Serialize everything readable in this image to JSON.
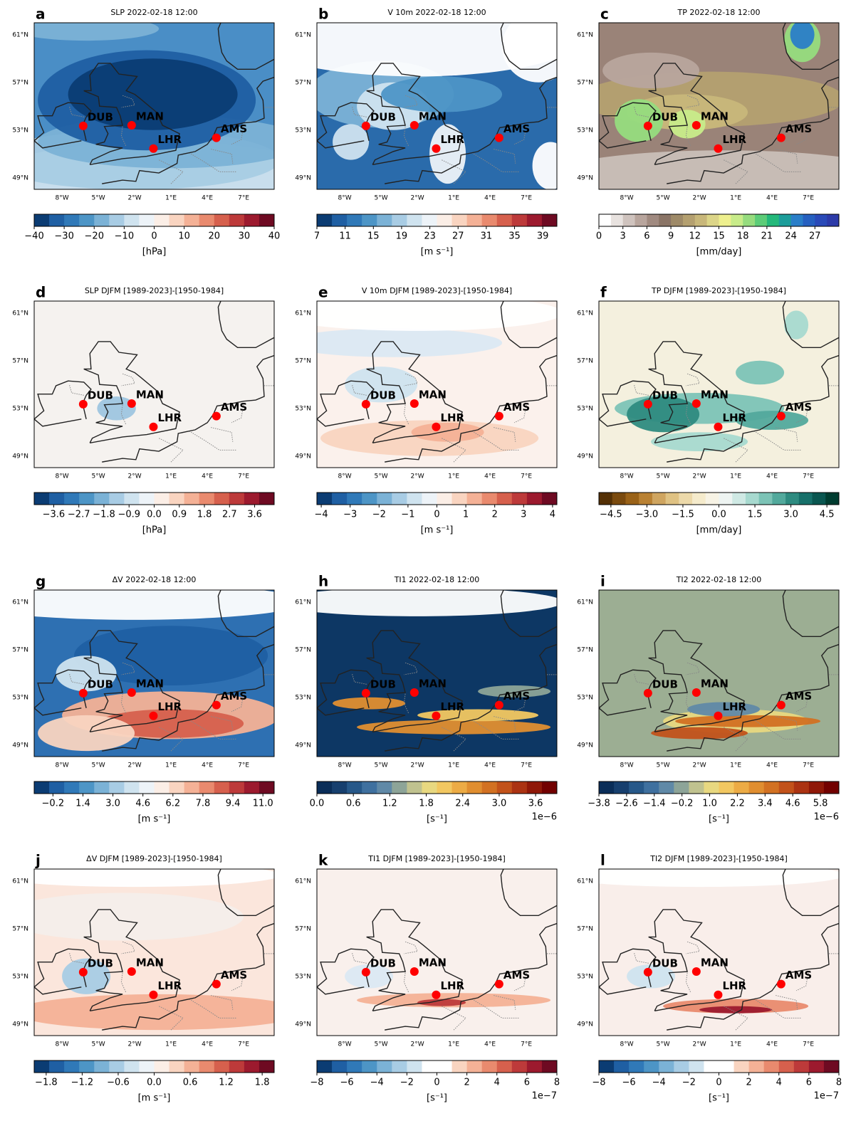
{
  "lat_labels": [
    "61°N",
    "57°N",
    "53°N",
    "49°N"
  ],
  "lon_labels": [
    "8°W",
    "5°W",
    "2°W",
    "1°E",
    "4°E",
    "7°E"
  ],
  "stations": [
    "DUB",
    "MAN",
    "LHR",
    "AMS"
  ],
  "panels": [
    {
      "letter": "a",
      "title": "SLP 2022-02-18 12:00",
      "colorbar": {
        "label": "[hPa]",
        "range": [
          -40,
          40
        ],
        "ticks": [
          {
            "value": -40,
            "label": "−40"
          },
          {
            "value": -30,
            "label": "−30"
          },
          {
            "value": -20,
            "label": "−20"
          },
          {
            "value": -10,
            "label": "−10"
          },
          0,
          10,
          20,
          30,
          40
        ],
        "colors": [
          "#0b3c73",
          "#1f5fa3",
          "#3079b8",
          "#4d95c6",
          "#7bb2d6",
          "#a8cce4",
          "#cfe3ef",
          "#edf3f8",
          "#fbeee6",
          "#f9d4c0",
          "#f4b196",
          "#e98a6e",
          "#d6604d",
          "#bd3a3a",
          "#9c1a2e",
          "#6e0a22"
        ]
      }
    },
    {
      "letter": "b",
      "title": "V 10m 2022-02-18 12:00",
      "colorbar": {
        "label": "[m s⁻¹]",
        "range": [
          7,
          41
        ],
        "ticks": [
          7,
          11,
          15,
          19,
          23,
          27,
          31,
          35,
          39
        ],
        "colors": [
          "#0b3c73",
          "#1f5fa3",
          "#3079b8",
          "#4d95c6",
          "#7bb2d6",
          "#a8cce4",
          "#cfe3ef",
          "#edf3f8",
          "#fbeee6",
          "#f9d4c0",
          "#f4b196",
          "#e98a6e",
          "#d6604d",
          "#bd3a3a",
          "#9c1a2e",
          "#6e0a22"
        ]
      }
    },
    {
      "letter": "c",
      "title": "TP 2022-02-18 12:00",
      "colorbar": {
        "label": "[mm/day]",
        "range": [
          0,
          30
        ],
        "ticks": [
          0,
          3,
          6,
          9,
          12,
          15,
          18,
          21,
          24,
          27
        ],
        "colors": [
          "#ffffff",
          "#e8e2df",
          "#cfc3be",
          "#b8a59d",
          "#a08a80",
          "#8a7466",
          "#9e8a68",
          "#b4a070",
          "#c8b77a",
          "#dcd588",
          "#eef08e",
          "#c8ec8a",
          "#96dc7e",
          "#5ccc78",
          "#24b87a",
          "#1c9d9a",
          "#2a7ec8",
          "#2660c0",
          "#2a4ab8",
          "#2c3aa8"
        ]
      }
    },
    {
      "letter": "d",
      "title": "SLP DJFM [1989-2023]-[1950-1984]",
      "colorbar": {
        "label": "[hPa]",
        "range": [
          -4.3,
          4.3
        ],
        "ticks": [
          {
            "value": -3.6,
            "label": "−3.6"
          },
          {
            "value": -2.7,
            "label": "−2.7"
          },
          {
            "value": -1.8,
            "label": "−1.8"
          },
          {
            "value": -0.9,
            "label": "−0.9"
          },
          {
            "value": 0,
            "label": "0.0"
          },
          0.9,
          1.8,
          2.7,
          3.6
        ],
        "colors": [
          "#0b3c73",
          "#1f5fa3",
          "#3079b8",
          "#4d95c6",
          "#7bb2d6",
          "#a8cce4",
          "#cfe3ef",
          "#edf3f8",
          "#fbeee6",
          "#f9d4c0",
          "#f4b196",
          "#e98a6e",
          "#d6604d",
          "#bd3a3a",
          "#9c1a2e",
          "#6e0a22"
        ]
      }
    },
    {
      "letter": "e",
      "title": "V 10m DJFM [1989-2023]-[1950-1984]",
      "colorbar": {
        "label": "[m s⁻¹]",
        "range": [
          -4.15,
          4.15
        ],
        "ticks": [
          {
            "value": -4,
            "label": "−4"
          },
          {
            "value": -3,
            "label": "−3"
          },
          {
            "value": -2,
            "label": "−2"
          },
          {
            "value": -1,
            "label": "−1"
          },
          0,
          1,
          2,
          3,
          4
        ],
        "colors": [
          "#0b3c73",
          "#1f5fa3",
          "#3079b8",
          "#4d95c6",
          "#7bb2d6",
          "#a8cce4",
          "#cfe3ef",
          "#edf3f8",
          "#fbeee6",
          "#f9d4c0",
          "#f4b196",
          "#e98a6e",
          "#d6604d",
          "#bd3a3a",
          "#9c1a2e",
          "#6e0a22"
        ]
      }
    },
    {
      "letter": "f",
      "title": "TP DJFM [1989-2023]-[1950-1984]",
      "colorbar": {
        "label": "[mm/day]",
        "range": [
          -5,
          5
        ],
        "ticks": [
          {
            "value": -4.5,
            "label": "−4.5"
          },
          {
            "value": -3,
            "label": "−3.0"
          },
          {
            "value": -1.5,
            "label": "−1.5"
          },
          {
            "value": 0,
            "label": "0.0"
          },
          1.5,
          {
            "value": 3,
            "label": "3.0"
          },
          4.5
        ],
        "colors": [
          "#543005",
          "#7a4a0e",
          "#9a6218",
          "#b98133",
          "#cfa560",
          "#dfc283",
          "#ecd9aa",
          "#f5ebcc",
          "#f7f3e5",
          "#eef4f2",
          "#cfe9e4",
          "#a7d9cf",
          "#7cc3b6",
          "#52a99c",
          "#2e8b80",
          "#17706a",
          "#0a5650",
          "#003c30"
        ]
      }
    },
    {
      "letter": "g",
      "title": "ΔV 2022-02-18 12:00",
      "colorbar": {
        "label": "[m s⁻¹]",
        "range": [
          -1.2,
          11.6
        ],
        "ticks": [
          {
            "value": -0.2,
            "label": "−0.2"
          },
          1.4,
          {
            "value": 3,
            "label": "3.0"
          },
          4.6,
          6.2,
          7.8,
          9.4,
          {
            "value": 11,
            "label": "11.0"
          }
        ],
        "colors": [
          "#0b3c73",
          "#1f5fa3",
          "#3079b8",
          "#4d95c6",
          "#7bb2d6",
          "#a8cce4",
          "#cfe3ef",
          "#edf3f8",
          "#fbeee6",
          "#f9d4c0",
          "#f4b196",
          "#e98a6e",
          "#d6604d",
          "#bd3a3a",
          "#9c1a2e",
          "#6e0a22"
        ]
      }
    },
    {
      "letter": "h",
      "title": "TI1 2022-02-18 12:00",
      "colorbar": {
        "label": "[s⁻¹]",
        "offset": "1e−6",
        "range": [
          0,
          3.95
        ],
        "ticks": [
          {
            "value": 0,
            "label": "0.0"
          },
          0.6,
          1.2,
          1.8,
          2.4,
          {
            "value": 3,
            "label": "3.0"
          },
          3.6
        ],
        "colors": [
          "#0a2d58",
          "#173f6e",
          "#275889",
          "#3f709f",
          "#6089a7",
          "#8da498",
          "#c0c28f",
          "#e8d880",
          "#f2c761",
          "#ecab45",
          "#e08e30",
          "#d27122",
          "#c2521a",
          "#ab3312",
          "#8f1808",
          "#720000"
        ]
      }
    },
    {
      "letter": "i",
      "title": "TI2 2022-02-18 12:00",
      "colorbar": {
        "label": "[s⁻¹]",
        "offset": "1e−6",
        "range": [
          -3.8,
          6.6
        ],
        "ticks": [
          {
            "value": -3.8,
            "label": "−3.8"
          },
          {
            "value": -2.6,
            "label": "−2.6"
          },
          {
            "value": -1.4,
            "label": "−1.4"
          },
          {
            "value": -0.2,
            "label": "−0.2"
          },
          {
            "value": 1,
            "label": "1.0"
          },
          2.2,
          3.4,
          4.6,
          5.8
        ],
        "colors": [
          "#0a2d58",
          "#173f6e",
          "#275889",
          "#3f709f",
          "#6089a7",
          "#8da498",
          "#c0c28f",
          "#e8d880",
          "#f2c761",
          "#ecab45",
          "#e08e30",
          "#d27122",
          "#c2521a",
          "#ab3312",
          "#8f1808",
          "#720000"
        ]
      }
    },
    {
      "letter": "j",
      "title": "ΔV DJFM [1989-2023]-[1950-1984]",
      "colorbar": {
        "label": "[m s⁻¹]",
        "range": [
          -2,
          2
        ],
        "ticks": [
          {
            "value": -1.8,
            "label": "−1.8"
          },
          {
            "value": -1.2,
            "label": "−1.2"
          },
          {
            "value": -0.6,
            "label": "−0.6"
          },
          {
            "value": 0,
            "label": "0.0"
          },
          0.6,
          1.2,
          1.8
        ],
        "colors": [
          "#0b3c73",
          "#1f5fa3",
          "#3079b8",
          "#4d95c6",
          "#7bb2d6",
          "#a8cce4",
          "#cfe3ef",
          "#edf3f8",
          "#fbeee6",
          "#f9d4c0",
          "#f4b196",
          "#e98a6e",
          "#d6604d",
          "#bd3a3a",
          "#9c1a2e",
          "#6e0a22"
        ]
      }
    },
    {
      "letter": "k",
      "title": "TI1 DJFM [1989-2023]-[1950-1984]",
      "colorbar": {
        "label": "[s⁻¹]",
        "offset": "1e−7",
        "range": [
          -8,
          8
        ],
        "ticks": [
          {
            "value": -8,
            "label": "−8"
          },
          {
            "value": -6,
            "label": "−6"
          },
          {
            "value": -4,
            "label": "−4"
          },
          {
            "value": -2,
            "label": "−2"
          },
          0,
          2,
          4,
          6,
          8
        ],
        "colors": [
          "#0b3c73",
          "#1f5fa3",
          "#3079b8",
          "#4d95c6",
          "#7bb2d6",
          "#a8cce4",
          "#cfe3ef",
          "#ffffff",
          "#ffffff",
          "#f9d4c0",
          "#f4b196",
          "#e98a6e",
          "#d6604d",
          "#bd3a3a",
          "#9c1a2e",
          "#6e0a22"
        ]
      }
    },
    {
      "letter": "l",
      "title": "TI2 DJFM [1989-2023]-[1950-1984]",
      "colorbar": {
        "label": "[s⁻¹]",
        "offset": "1e−7",
        "range": [
          -8,
          8
        ],
        "ticks": [
          {
            "value": -8,
            "label": "−8"
          },
          {
            "value": -6,
            "label": "−6"
          },
          {
            "value": -4,
            "label": "−4"
          },
          {
            "value": -2,
            "label": "−2"
          },
          0,
          2,
          4,
          6,
          8
        ],
        "colors": [
          "#0b3c73",
          "#1f5fa3",
          "#3079b8",
          "#4d95c6",
          "#7bb2d6",
          "#a8cce4",
          "#cfe3ef",
          "#ffffff",
          "#ffffff",
          "#f9d4c0",
          "#f4b196",
          "#e98a6e",
          "#d6604d",
          "#bd3a3a",
          "#9c1a2e",
          "#6e0a22"
        ]
      }
    }
  ]
}
